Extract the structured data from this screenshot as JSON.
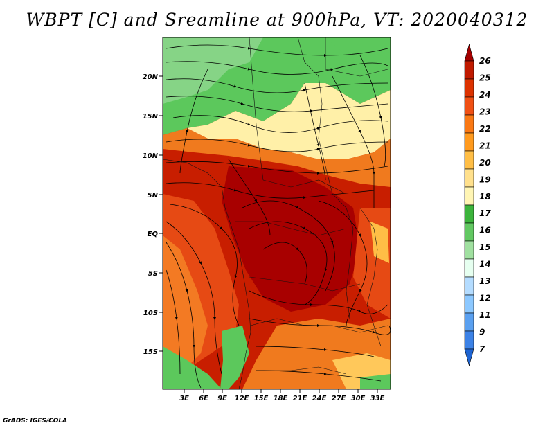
{
  "title": "WBPT [C] and Sreamline at 900hPa, VT: 2020040312",
  "footer": "GrADS: IGES/COLA",
  "axes": {
    "lat_labels": [
      "20N",
      "15N",
      "10N",
      "5N",
      "EQ",
      "5S",
      "10S",
      "15S"
    ],
    "lon_labels": [
      "3E",
      "6E",
      "9E",
      "12E",
      "15E",
      "18E",
      "21E",
      "24E",
      "27E",
      "30E",
      "33E"
    ]
  },
  "colorbar": {
    "labels": [
      "26",
      "25",
      "24",
      "23",
      "22",
      "21",
      "20",
      "19",
      "18",
      "17",
      "16",
      "15",
      "14",
      "13",
      "12",
      "11",
      "9",
      "7"
    ],
    "colors": [
      "#a50000",
      "#c01a00",
      "#dc3200",
      "#f05014",
      "#fa7814",
      "#ff9a1e",
      "#ffbe46",
      "#ffe08c",
      "#fff5b4",
      "#3cb43c",
      "#62c862",
      "#a0e0a0",
      "#e6fff0",
      "#b4dcff",
      "#8cc8ff",
      "#5aa0f0",
      "#3c82e6",
      "#1e64d2"
    ]
  },
  "map": {
    "field": "Wet-bulb potential temperature",
    "level": "900hPa",
    "valid_time": "2020040312"
  }
}
